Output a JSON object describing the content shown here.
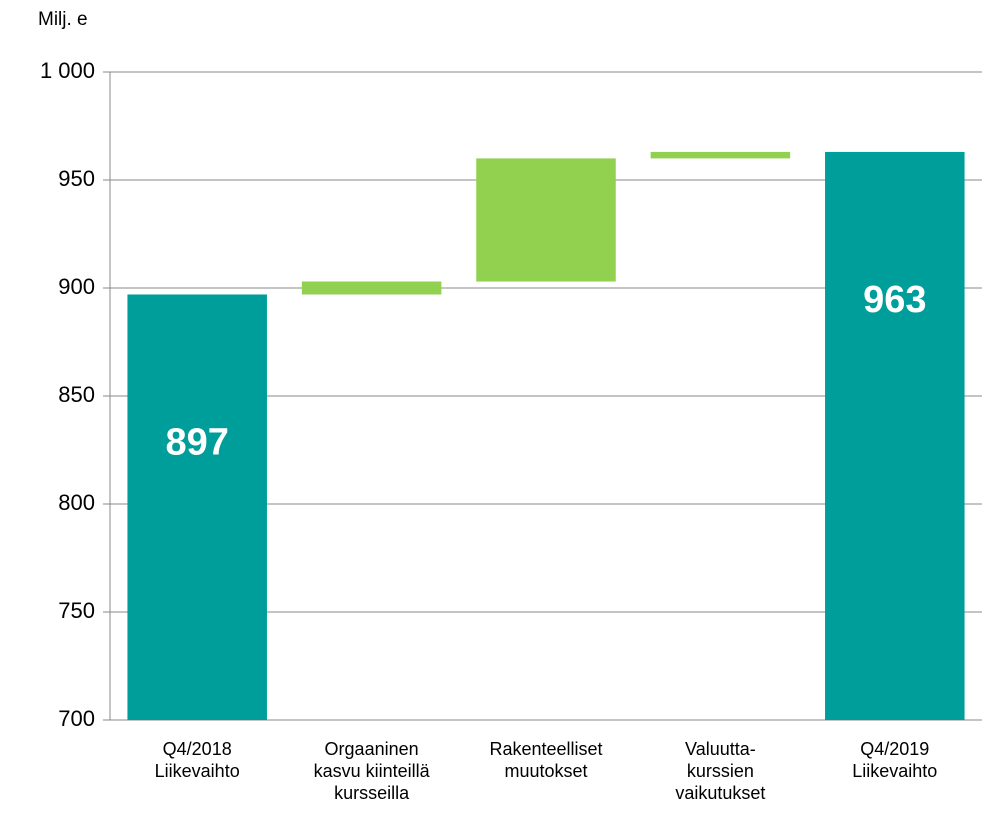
{
  "chart_data": {
    "type": "waterfall",
    "y_axis_label": "Milj. e",
    "categories": [
      "Q4/2018\nLiikevaihto",
      "Orgaaninen\nkasvu kiinteillä\nkursseilla",
      "Rakenteelliset\nmuutokset",
      "Valuutta-\nkurssien\nvaikutukset",
      "Q4/2019\nLiikevaihto"
    ],
    "values": [
      897,
      6,
      57,
      3,
      963
    ],
    "totals": [
      true,
      false,
      false,
      false,
      true
    ],
    "total_color": "#009e9a",
    "change_color": "#92d050",
    "ylim": [
      700,
      1000
    ],
    "yticks": [
      700,
      750,
      800,
      850,
      900,
      950,
      {
        "value": 1000,
        "label": "1 000"
      }
    ],
    "grid": true
  }
}
